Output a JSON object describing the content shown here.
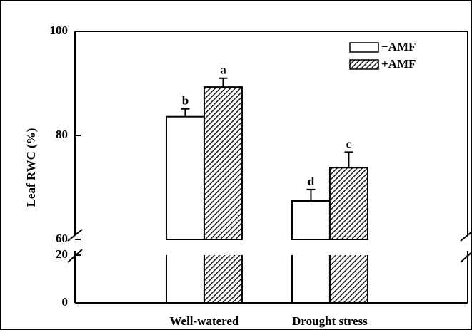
{
  "chart_data": {
    "type": "bar",
    "y_label": "Leaf RWC (%)",
    "categories": [
      "Well-watered",
      "Drought stress"
    ],
    "series": [
      {
        "name": "−AMF",
        "color": "#ffffff",
        "values": [
          83.6,
          67.4
        ],
        "errors": [
          1.5,
          2.2
        ],
        "letters": [
          "b",
          "d"
        ]
      },
      {
        "name": "+AMF",
        "color": "hatch",
        "values": [
          89.3,
          73.8
        ],
        "errors": [
          1.7,
          3.0
        ],
        "letters": [
          "a",
          "c"
        ]
      }
    ],
    "ylim": [
      0,
      100
    ],
    "yticks": [
      0,
      20,
      60,
      80,
      100
    ],
    "axis_break": [
      20,
      60
    ],
    "legend": "upper right"
  }
}
